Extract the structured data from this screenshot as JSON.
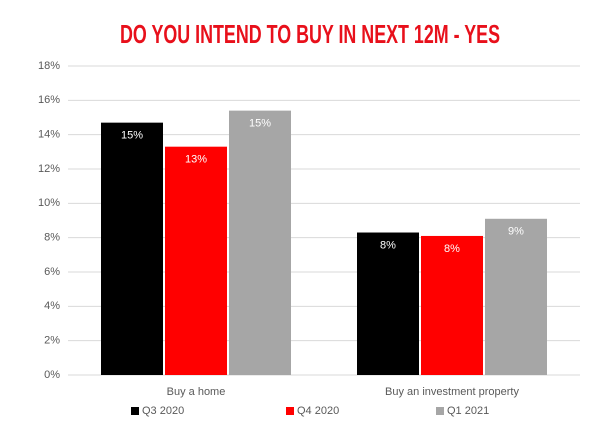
{
  "chart_data": {
    "type": "bar",
    "title": "DO YOU INTEND TO BUY IN NEXT 12M - YES",
    "categories": [
      "Buy a home",
      "Buy an investment property"
    ],
    "series": [
      {
        "name": "Q3 2020",
        "color": "#000000",
        "values": [
          14.7,
          8.3
        ],
        "value_labels": [
          "15%",
          "8%"
        ]
      },
      {
        "name": "Q4 2020",
        "color": "#ff0000",
        "values": [
          13.3,
          8.1
        ],
        "value_labels": [
          "13%",
          "8%"
        ]
      },
      {
        "name": "Q1 2021",
        "color": "#a6a6a6",
        "values": [
          15.4,
          9.1
        ],
        "value_labels": [
          "15%",
          "9%"
        ]
      }
    ],
    "ylim": [
      0,
      18
    ],
    "yticks": [
      {
        "value": 0,
        "label": "0%"
      },
      {
        "value": 2,
        "label": "2%"
      },
      {
        "value": 4,
        "label": "4%"
      },
      {
        "value": 6,
        "label": "6%"
      },
      {
        "value": 8,
        "label": "8%"
      },
      {
        "value": 10,
        "label": "10%"
      },
      {
        "value": 12,
        "label": "12%"
      },
      {
        "value": 14,
        "label": "14%"
      },
      {
        "value": 16,
        "label": "16%"
      },
      {
        "value": 18,
        "label": "18%"
      }
    ],
    "grid": true,
    "legend": "bottom"
  }
}
